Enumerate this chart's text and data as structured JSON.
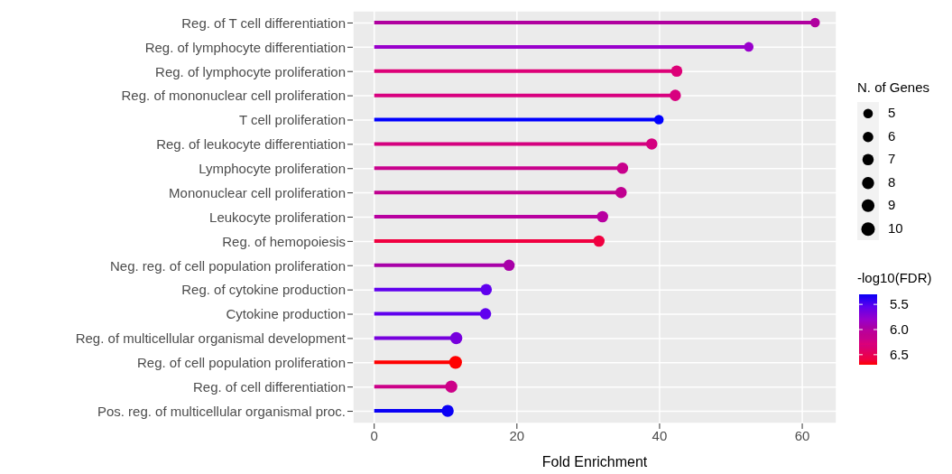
{
  "chart_data": {
    "type": "lollipop",
    "orientation": "horizontal",
    "xlabel": "Fold Enrichment",
    "legend_title": "N. of Genes",
    "clabel": "-log10(FDR)",
    "grid": true,
    "categories": [
      "Reg. of T cell differentiation",
      "Reg. of lymphocyte differentiation",
      "Reg. of lymphocyte proliferation",
      "Reg. of mononuclear cell proliferation",
      "T cell proliferation",
      "Reg. of leukocyte differentiation",
      "Lymphocyte proliferation",
      "Mononuclear cell proliferation",
      "Leukocyte proliferation",
      "Reg. of hemopoiesis",
      "Neg. reg. of cell population proliferation",
      "Reg. of cytokine production",
      "Cytokine production",
      "Reg. of multicellular organismal development",
      "Reg. of cell population proliferation",
      "Reg. of cell differentiation",
      "Pos. reg. of multicellular organismal proc."
    ],
    "values": [
      61.8,
      52.5,
      42.4,
      42.2,
      39.9,
      38.9,
      34.8,
      34.6,
      32.0,
      31.5,
      18.9,
      15.7,
      15.6,
      11.5,
      11.4,
      10.8,
      10.3
    ],
    "sizes": [
      5,
      5,
      7,
      7,
      5,
      7,
      7,
      7,
      7,
      7,
      7,
      7,
      7,
      8,
      9,
      8,
      8
    ],
    "cvalues": [
      6.0,
      5.8,
      6.3,
      6.3,
      5.3,
      6.3,
      6.2,
      6.1,
      6.0,
      6.6,
      5.95,
      5.55,
      5.55,
      5.65,
      6.7,
      6.2,
      5.3
    ],
    "colors": [
      "#b0009f",
      "#9900cc",
      "#dd0077",
      "#d8007f",
      "#0000ff",
      "#d4007f",
      "#c8008c",
      "#c00090",
      "#b800a0",
      "#f00040",
      "#a800a8",
      "#6000ee",
      "#6000ee",
      "#7700dd",
      "#ff0000",
      "#cc0088",
      "#0a00f5"
    ],
    "size_legend": [
      5,
      6,
      7,
      8,
      9,
      10
    ],
    "clim": [
      5.3,
      6.7
    ],
    "cticks": [
      5.5,
      {
        "value": 6,
        "label": "6.0"
      },
      6.5
    ],
    "xlim": [
      -3,
      64.8
    ],
    "xticks": [
      0,
      20,
      40,
      60
    ]
  }
}
